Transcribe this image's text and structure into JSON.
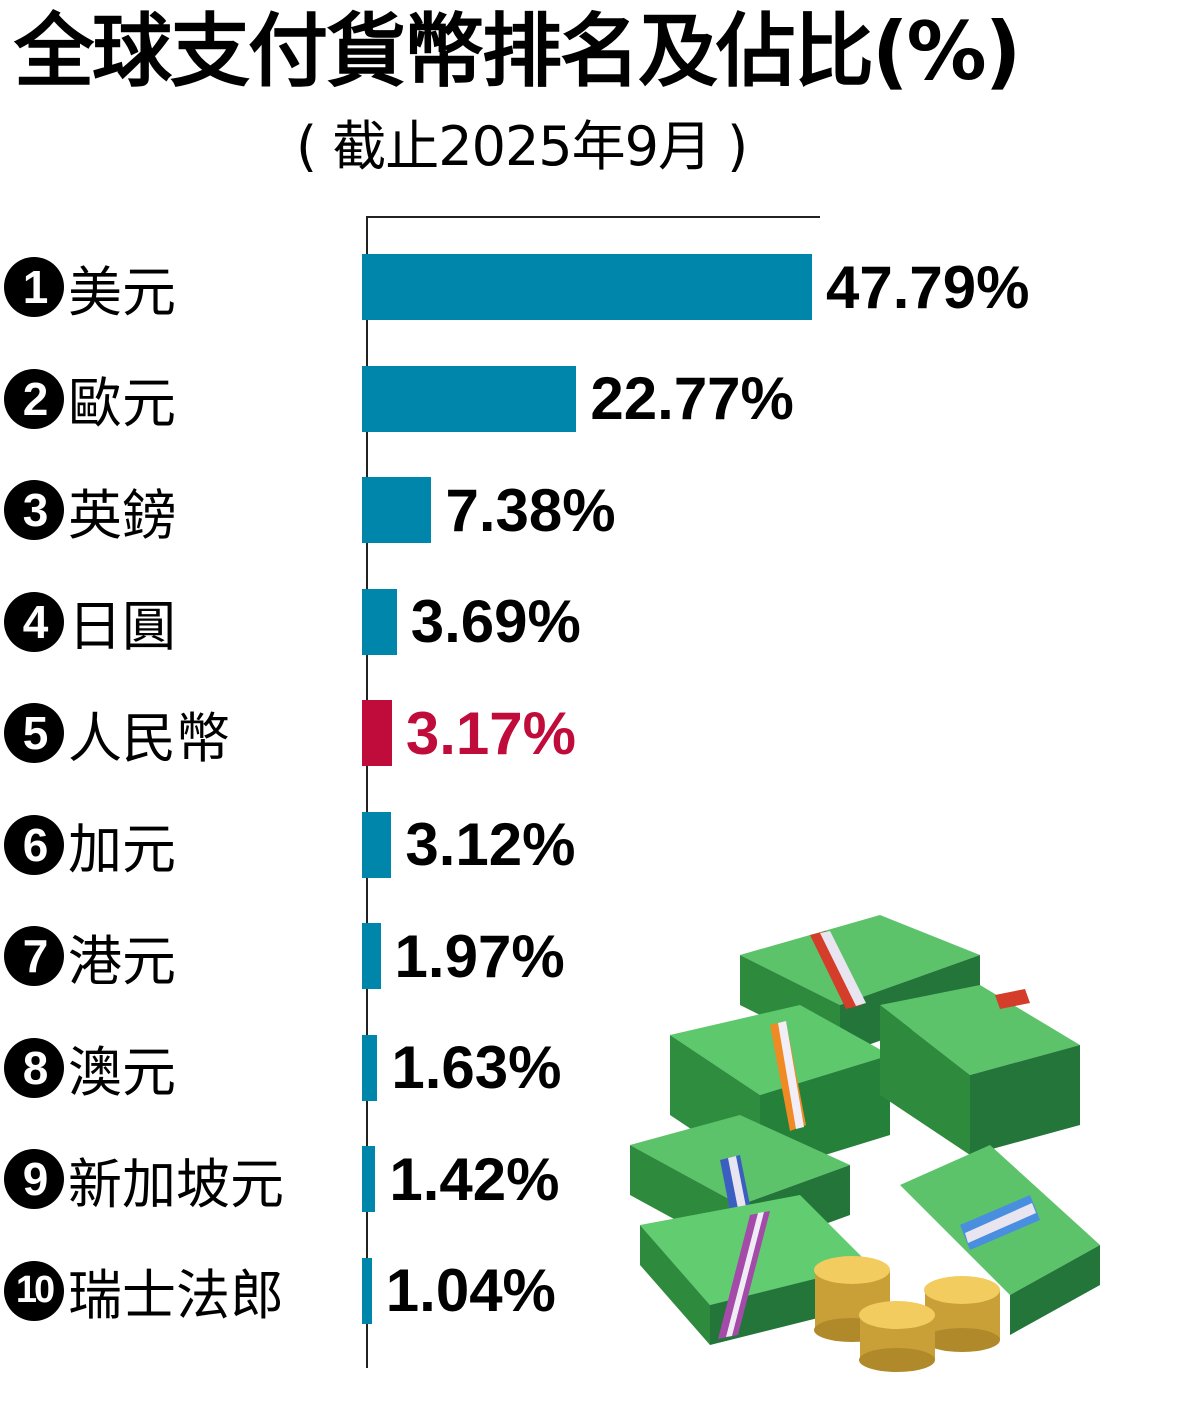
{
  "title": "全球支付貨幣排名及佔比(%)",
  "subtitle": "( 截止2025年9月 )",
  "colors": {
    "bar_default": "#0086aa",
    "bar_highlight": "#c00c3a",
    "text_default": "#000000",
    "text_highlight": "#c00c3a"
  },
  "rows": [
    {
      "rank": "1",
      "label": "美元",
      "value": "47.79%"
    },
    {
      "rank": "2",
      "label": "歐元",
      "value": "22.77%"
    },
    {
      "rank": "3",
      "label": "英鎊",
      "value": "7.38%"
    },
    {
      "rank": "4",
      "label": "日圓",
      "value": "3.69%"
    },
    {
      "rank": "5",
      "label": "人民幣",
      "value": "3.17%"
    },
    {
      "rank": "6",
      "label": "加元",
      "value": "3.12%"
    },
    {
      "rank": "7",
      "label": "港元",
      "value": "1.97%"
    },
    {
      "rank": "8",
      "label": "澳元",
      "value": "1.63%"
    },
    {
      "rank": "9",
      "label": "新加坡元",
      "value": "1.42%"
    },
    {
      "rank": "10",
      "label": "瑞士法郎",
      "value": "1.04%"
    }
  ],
  "illustration": "money-stack-illustration",
  "chart_data": {
    "type": "bar",
    "orientation": "horizontal",
    "title": "全球支付貨幣排名及佔比(%)",
    "subtitle": "( 截止2025年9月 )",
    "categories": [
      "美元",
      "歐元",
      "英鎊",
      "日圓",
      "人民幣",
      "加元",
      "港元",
      "澳元",
      "新加坡元",
      "瑞士法郎"
    ],
    "values": [
      47.79,
      22.77,
      7.38,
      3.69,
      3.17,
      3.12,
      1.97,
      1.63,
      1.42,
      1.04
    ],
    "unit": "%",
    "highlighted_category": "人民幣",
    "xlabel": "",
    "ylabel": "",
    "grid": false,
    "legend": null
  }
}
